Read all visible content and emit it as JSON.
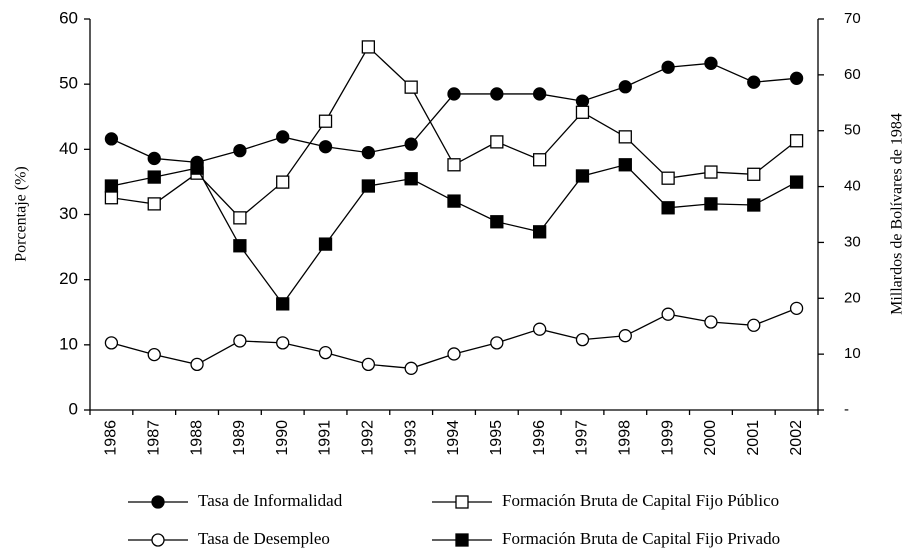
{
  "chart_data": {
    "type": "line",
    "categories": [
      "1986",
      "1987",
      "1988",
      "1989",
      "1990",
      "1991",
      "1992",
      "1993",
      "1994",
      "1995",
      "1996",
      "1997",
      "1998",
      "1999",
      "2000",
      "2001",
      "2002"
    ],
    "ylabel": "Porcentaje (%)",
    "y2label": "Millardos de Bolívares de 1984",
    "ylim": [
      0,
      60
    ],
    "yticks": [
      0,
      10,
      20,
      30,
      40,
      50,
      60
    ],
    "y2lim": [
      0,
      70
    ],
    "y2ticks": [
      {
        "value": 0,
        "label": "-"
      },
      10,
      20,
      30,
      40,
      50,
      60,
      70
    ],
    "series": [
      {
        "name": "Tasa de Informalidad",
        "color": "#000000",
        "marker": "circle",
        "filled": true,
        "values": [
          41.6,
          38.6,
          38.0,
          39.8,
          41.9,
          40.4,
          39.5,
          40.8,
          48.5,
          48.5,
          48.5,
          47.4,
          49.6,
          52.6,
          53.2,
          50.3,
          50.9
        ]
      },
      {
        "name": "Tasa de Desempleo",
        "color": "#000000",
        "marker": "circle",
        "filled": false,
        "values": [
          10.3,
          8.5,
          7.0,
          10.6,
          10.3,
          8.8,
          7.0,
          6.4,
          8.6,
          10.3,
          12.4,
          10.8,
          11.4,
          14.7,
          13.5,
          13.0,
          15.6
        ]
      },
      {
        "name": "Formación Bruta de Capital Fijo Público",
        "color": "#000000",
        "marker": "square",
        "filled": false,
        "axis": "y2",
        "values": [
          38.0,
          36.9,
          42.4,
          34.4,
          40.8,
          51.7,
          65.0,
          57.8,
          43.9,
          48.0,
          44.8,
          53.3,
          48.9,
          41.5,
          42.6,
          42.2,
          48.2
        ]
      },
      {
        "name": "Formación Bruta de Capital Fijo Privado",
        "color": "#000000",
        "marker": "square",
        "filled": true,
        "axis": "y2",
        "values": [
          40.1,
          41.7,
          43.3,
          29.4,
          19.0,
          29.7,
          40.1,
          41.4,
          37.4,
          33.7,
          31.9,
          41.9,
          43.9,
          36.2,
          36.9,
          36.7,
          40.8
        ]
      }
    ]
  }
}
